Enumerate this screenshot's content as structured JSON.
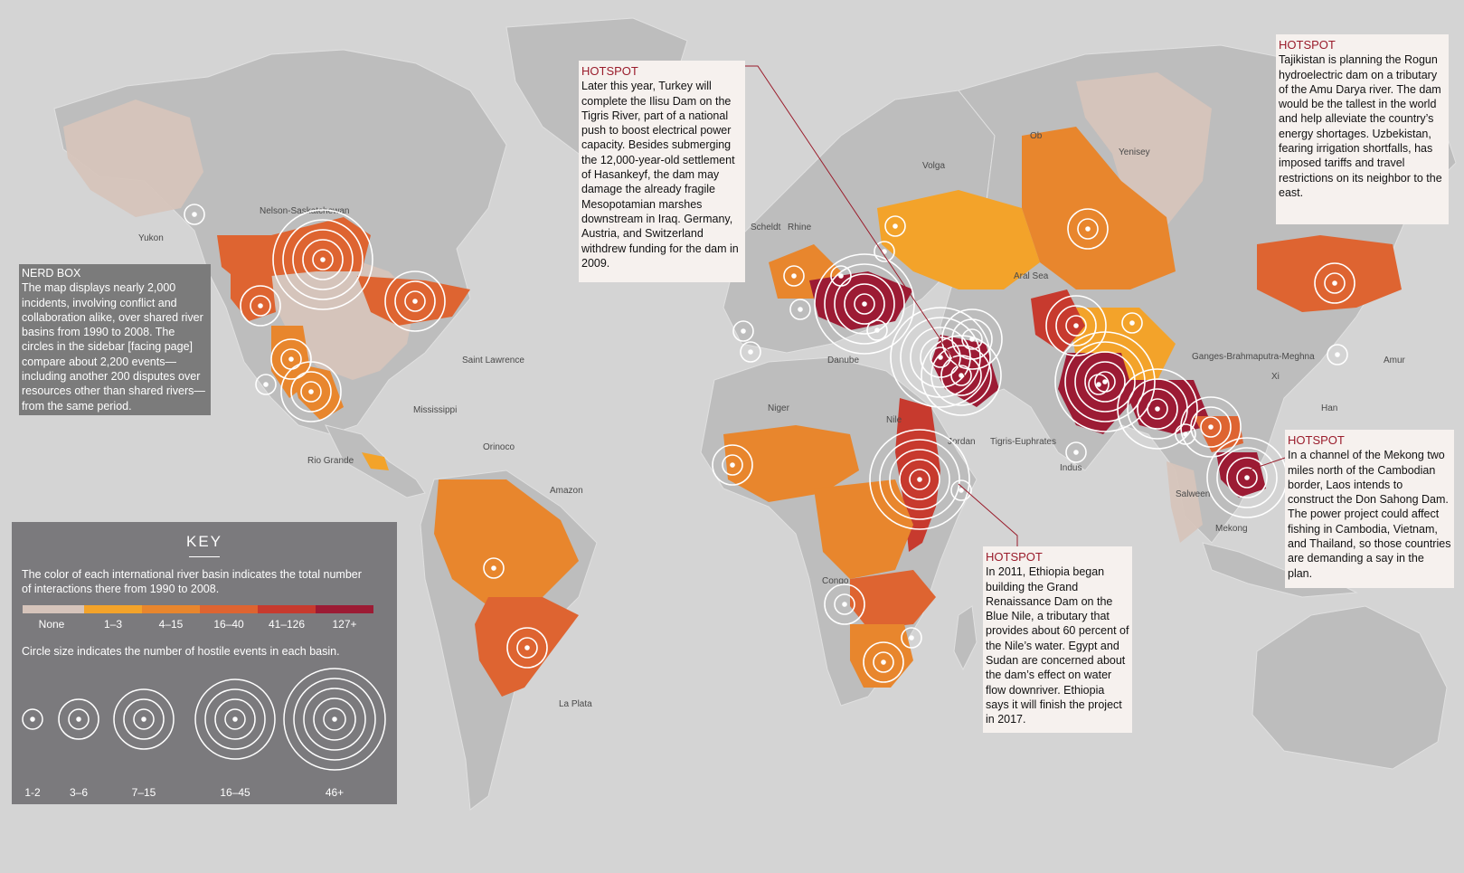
{
  "colors": {
    "ocean": "#d4d4d4",
    "land": "#bdbdbd",
    "none": "#d6c4bb",
    "c1_3": "#f3a32a",
    "c4_15": "#e8862d",
    "c16_40": "#de6431",
    "c41_126": "#c73a2e",
    "c127": "#9c1b34",
    "hotspot": "#9a1c2b"
  },
  "river_labels": [
    {
      "text": "Yukon"
    },
    {
      "text": "Nelson-Saskatchewan"
    },
    {
      "text": "Saint Lawrence"
    },
    {
      "text": "Mississippi"
    },
    {
      "text": "Rio Grande"
    },
    {
      "text": "Orinoco"
    },
    {
      "text": "Amazon"
    },
    {
      "text": "La Plata"
    },
    {
      "text": "Scheldt"
    },
    {
      "text": "Rhine"
    },
    {
      "text": "Danube"
    },
    {
      "text": "Volga"
    },
    {
      "text": "Ob"
    },
    {
      "text": "Yenisey"
    },
    {
      "text": "Aral Sea"
    },
    {
      "text": "Niger"
    },
    {
      "text": "Nile"
    },
    {
      "text": "Jordan"
    },
    {
      "text": "Tigris-Euphrates"
    },
    {
      "text": "Indus"
    },
    {
      "text": "Ganges-Brahmaputra-Meghna"
    },
    {
      "text": "Xi"
    },
    {
      "text": "Amur"
    },
    {
      "text": "Han"
    },
    {
      "text": "Salween"
    },
    {
      "text": "Mekong"
    },
    {
      "text": "Congo"
    }
  ],
  "nerd_box": {
    "heading": "NERD BOX",
    "text": "The map displays nearly 2,000 incidents, involving conflict and collaboration alike, over shared river basins from 1990 to 2008. The circles in the sidebar [facing page] compare about 2,200 events—including another 200 disputes over resources other than shared rivers—from the same period."
  },
  "hotspots": {
    "turkey": {
      "heading": "HOTSPOT",
      "text": "Later this year, Turkey will complete the Ilisu Dam on the Tigris River, part of a national push to boost electrical power capacity. Besides submerging the 12,000-year-old settlement of Hasankeyf, the dam may damage the already fragile Mesopotamian marshes downstream in Iraq. Germany, Austria, and Switzerland withdrew funding for the dam in 2009."
    },
    "tajikistan": {
      "heading": "HOTSPOT",
      "text": "Tajikistan is planning the Rogun hydroelectric dam on a tributary of the Amu Darya river. The dam would be the tallest in the world and help alleviate the country’s energy shortages. Uzbekistan, fearing irrigation shortfalls, has imposed tariffs and travel restrictions on its neighbor to the east."
    },
    "laos": {
      "heading": "HOTSPOT",
      "text": "In a channel of the Mekong two miles north of the Cambodian border, Laos intends to construct the Don Sahong Dam. The power project could affect fishing in Cambodia, Vietnam, and Thailand, so those countries are demanding a say in the plan."
    },
    "ethiopia": {
      "heading": "HOTSPOT",
      "text": "In 2011, Ethiopia began building the Grand Renaissance Dam on the Blue Nile, a tributary that provides about 60 percent of the Nile’s water. Egypt and Sudan are concerned about the dam’s effect on water flow downriver. Ethiopia says it will finish the project in 2017."
    }
  },
  "key": {
    "title": "KEY",
    "color_desc": "The color of each international river basin indicates the total number of interactions there from 1990 to 2008.",
    "color_bins": [
      "None",
      "1–3",
      "4–15",
      "16–40",
      "41–126",
      "127+"
    ],
    "circle_desc": "Circle size indicates the number of hostile events in each basin.",
    "circle_bins": [
      "1-2",
      "3–6",
      "7–15",
      "16–45",
      "46+"
    ]
  }
}
